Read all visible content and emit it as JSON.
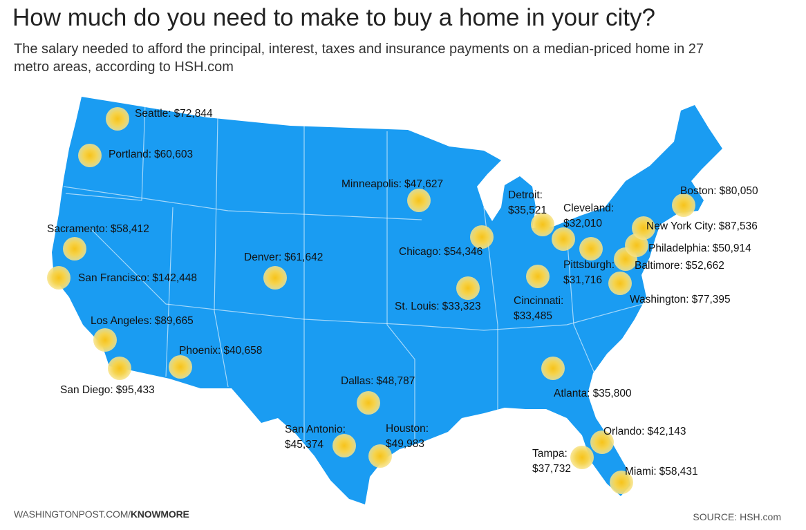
{
  "header": {
    "title": "How much do you need to make to buy a home in your city?",
    "subtitle": "The salary needed to afford the principal, interest, taxes and insurance payments on a median-priced home in 27 metro areas, according to HSH.com"
  },
  "cities": [
    {
      "name": "Seattle:",
      "salary": "$72,844"
    },
    {
      "name": "Portland:",
      "salary": "$60,603"
    },
    {
      "name": "Sacramento:",
      "salary": "$58,412"
    },
    {
      "name": "San Francisco:",
      "salary": "$142,448"
    },
    {
      "name": "Los Angeles:",
      "salary": "$89,665"
    },
    {
      "name": "San Diego:",
      "salary": "$95,433"
    },
    {
      "name": "Phoenix:",
      "salary": "$40,658"
    },
    {
      "name": "Denver:",
      "salary": "$61,642"
    },
    {
      "name": "Minneapolis:",
      "salary": "$47,627"
    },
    {
      "name": "Chicago:",
      "salary": "$54,346"
    },
    {
      "name": "St. Louis:",
      "salary": "$33,323"
    },
    {
      "name": "Dallas:",
      "salary": "$48,787"
    },
    {
      "name": "San Antonio:",
      "salary": "$45,374"
    },
    {
      "name": "Houston:",
      "salary": "$49,983"
    },
    {
      "name": "Detroit:",
      "salary": "$35,521"
    },
    {
      "name": "Cleveland:",
      "salary": "$32,010"
    },
    {
      "name": "Pittsburgh:",
      "salary": "$31,716"
    },
    {
      "name": "Cincinnati:",
      "salary": "$33,485"
    },
    {
      "name": "Atlanta:",
      "salary": "$35,800"
    },
    {
      "name": "Orlando:",
      "salary": "$42,143"
    },
    {
      "name": "Tampa:",
      "salary": "$37,732"
    },
    {
      "name": "Miami:",
      "salary": "$58,431"
    },
    {
      "name": "Washington:",
      "salary": "$77,395"
    },
    {
      "name": "Baltimore:",
      "salary": "$52,662"
    },
    {
      "name": "Philadelphia:",
      "salary": "$50,914"
    },
    {
      "name": "New York City:",
      "salary": "$87,536"
    },
    {
      "name": "Boston:",
      "salary": "$80,050"
    }
  ],
  "footer": {
    "site": "WASHINGTONPOST.COM/",
    "section": "KNOWMORE",
    "source": "SOURCE: HSH.com"
  }
}
